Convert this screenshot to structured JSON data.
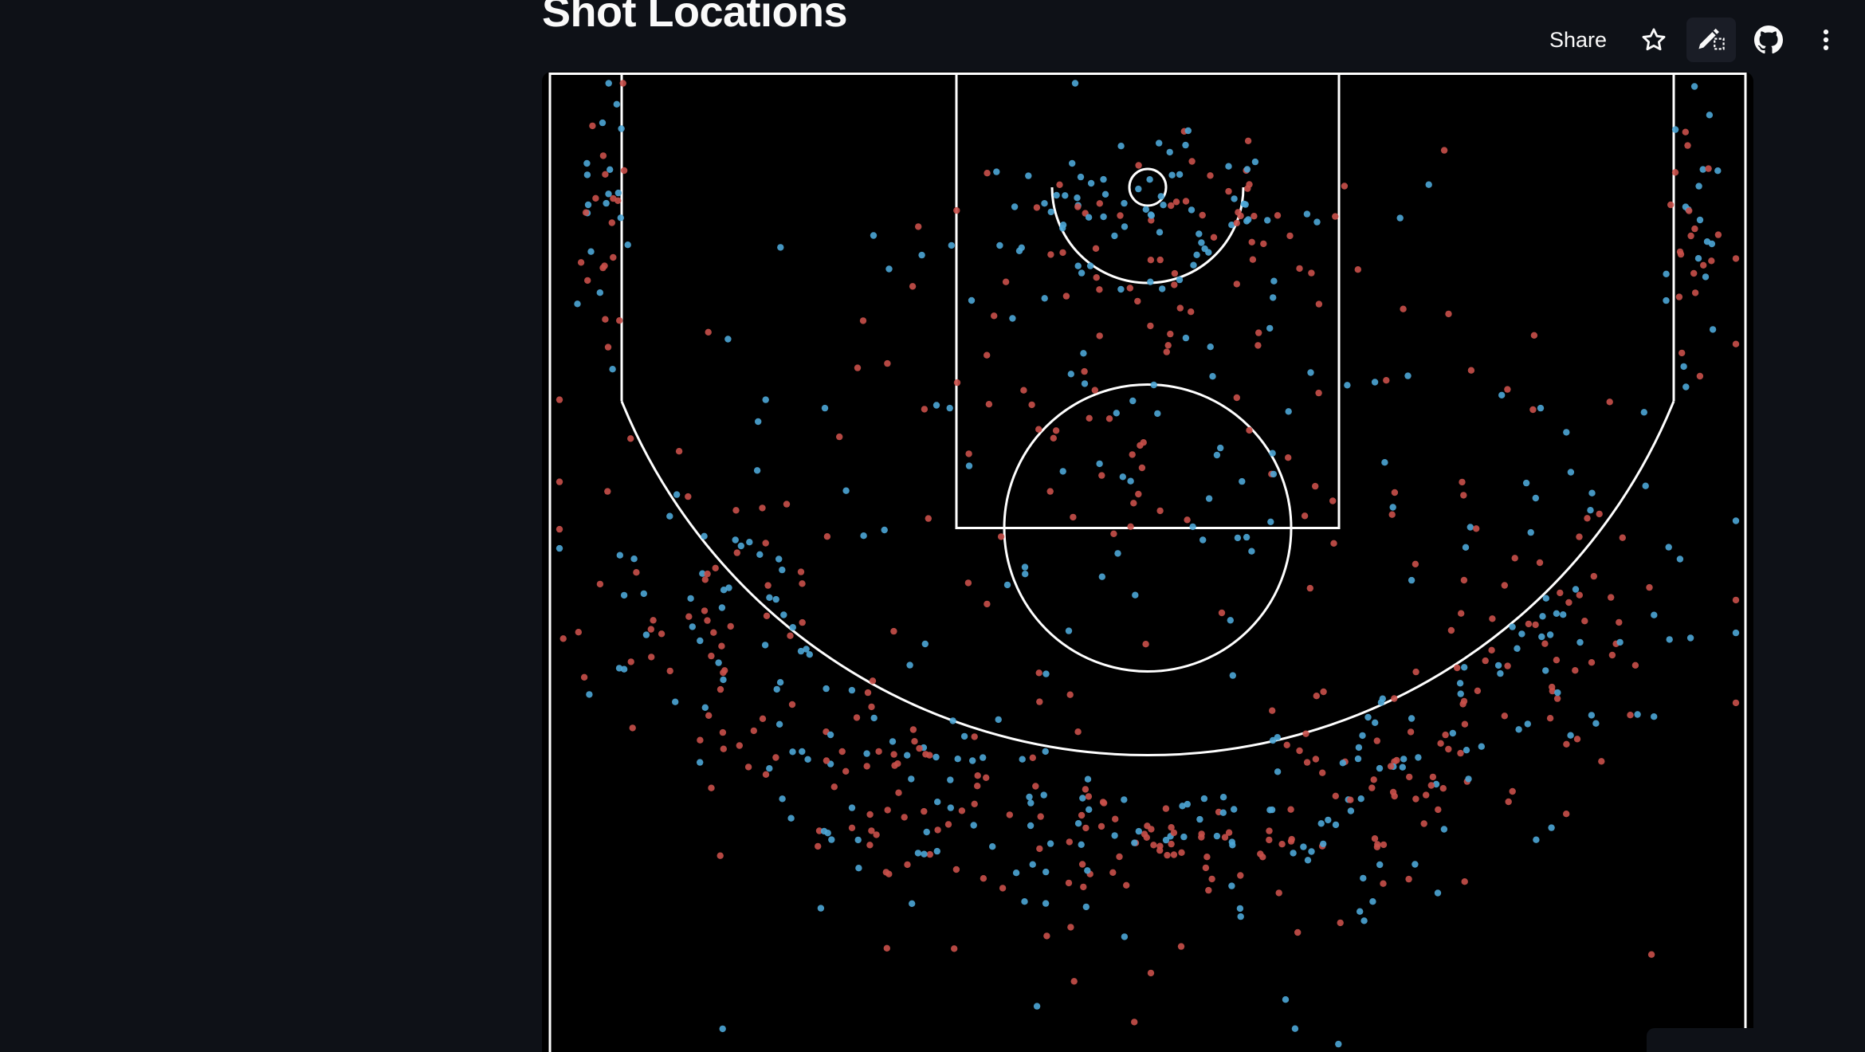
{
  "page": {
    "title": "Shot Locations"
  },
  "toolbar": {
    "share_label": "Share",
    "icons": [
      "star-icon",
      "edit-source-icon",
      "github-icon",
      "more-vert-icon"
    ]
  },
  "colors": {
    "app_background": "#0e1117",
    "chart_background": "#000000",
    "court_lines": "#ffffff",
    "series_a": "#c9504a",
    "series_b": "#4da6d6"
  },
  "chart_data": {
    "type": "scatter",
    "title": "",
    "xlabel": "",
    "ylabel": "",
    "xlim": [
      -250,
      250
    ],
    "ylim": [
      -47.5,
      380
    ],
    "grid": false,
    "legend": "none",
    "court": "NBA half court",
    "series": [
      {
        "color": "#c9504a",
        "clusters": [
          {
            "zone": "paint",
            "x": 0,
            "y": 25,
            "sx": 45,
            "sy": 25,
            "n": 55
          },
          {
            "zone": "lane",
            "x": 0,
            "y": 90,
            "sx": 55,
            "sy": 40,
            "n": 25
          },
          {
            "zone": "mid-range",
            "x": 0,
            "y": 130,
            "sx": 150,
            "sy": 55,
            "n": 70
          },
          {
            "zone": "left corner three",
            "x": -228,
            "y": 20,
            "sx": 6,
            "sy": 35,
            "n": 18
          },
          {
            "zone": "right corner three",
            "x": 228,
            "y": 20,
            "sx": 6,
            "sy": 35,
            "n": 18
          },
          {
            "zone": "left wing three",
            "x": -175,
            "y": 185,
            "sx": 28,
            "sy": 35,
            "n": 45
          },
          {
            "zone": "left slot three",
            "x": -95,
            "y": 250,
            "sx": 30,
            "sy": 22,
            "n": 45
          },
          {
            "zone": "top of key three",
            "x": 0,
            "y": 275,
            "sx": 45,
            "sy": 15,
            "n": 55
          },
          {
            "zone": "right slot three",
            "x": 95,
            "y": 250,
            "sx": 30,
            "sy": 22,
            "n": 45
          },
          {
            "zone": "right wing three",
            "x": 175,
            "y": 185,
            "sx": 28,
            "sy": 35,
            "n": 45
          },
          {
            "zone": "deep",
            "x": 0,
            "y": 320,
            "sx": 120,
            "sy": 25,
            "n": 12
          }
        ]
      },
      {
        "color": "#4da6d6",
        "clusters": [
          {
            "zone": "paint",
            "x": 0,
            "y": 15,
            "sx": 40,
            "sy": 18,
            "n": 70
          },
          {
            "zone": "lane",
            "x": 0,
            "y": 90,
            "sx": 55,
            "sy": 40,
            "n": 22
          },
          {
            "zone": "mid-range",
            "x": 0,
            "y": 130,
            "sx": 150,
            "sy": 55,
            "n": 55
          },
          {
            "zone": "left corner three",
            "x": -228,
            "y": 20,
            "sx": 6,
            "sy": 35,
            "n": 18
          },
          {
            "zone": "right corner three",
            "x": 228,
            "y": 20,
            "sx": 6,
            "sy": 35,
            "n": 18
          },
          {
            "zone": "left wing three",
            "x": -175,
            "y": 185,
            "sx": 28,
            "sy": 35,
            "n": 40
          },
          {
            "zone": "left slot three",
            "x": -95,
            "y": 250,
            "sx": 30,
            "sy": 22,
            "n": 38
          },
          {
            "zone": "top of key three",
            "x": 0,
            "y": 275,
            "sx": 45,
            "sy": 15,
            "n": 40
          },
          {
            "zone": "right slot three",
            "x": 95,
            "y": 250,
            "sx": 30,
            "sy": 22,
            "n": 38
          },
          {
            "zone": "right wing three",
            "x": 175,
            "y": 185,
            "sx": 28,
            "sy": 35,
            "n": 40
          },
          {
            "zone": "deep",
            "x": 0,
            "y": 320,
            "sx": 120,
            "sy": 25,
            "n": 10
          }
        ]
      }
    ]
  }
}
